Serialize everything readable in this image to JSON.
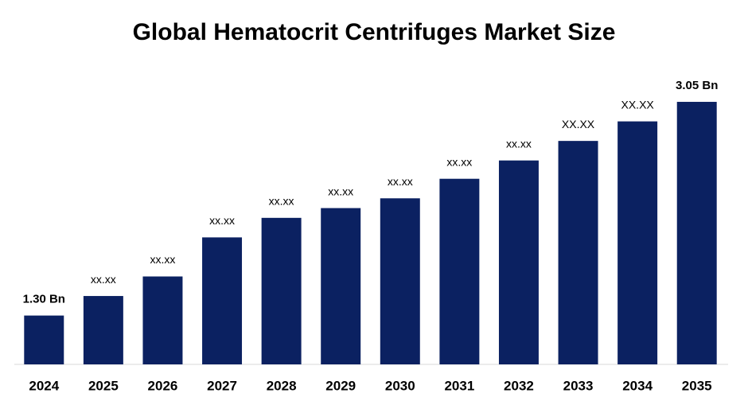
{
  "chart_data": {
    "type": "bar",
    "title": "Global Hematocrit Centrifuges Market Size",
    "categories": [
      "2024",
      "2025",
      "2026",
      "2027",
      "2028",
      "2029",
      "2030",
      "2031",
      "2032",
      "2033",
      "2034",
      "2035"
    ],
    "values": [
      1.3,
      1.46,
      1.62,
      1.94,
      2.1,
      2.18,
      2.26,
      2.42,
      2.57,
      2.73,
      2.89,
      3.05
    ],
    "value_labels": [
      "1.30 Bn",
      "xx.xx",
      "xx.xx",
      "xx.xx",
      "xx.xx",
      "xx.xx",
      "xx.xx",
      "xx.xx",
      "xx.xx",
      "XX.XX",
      "XX.XX",
      "3.05 Bn"
    ],
    "color": "#0b2161",
    "ylim": [
      0.9,
      3.2
    ]
  }
}
